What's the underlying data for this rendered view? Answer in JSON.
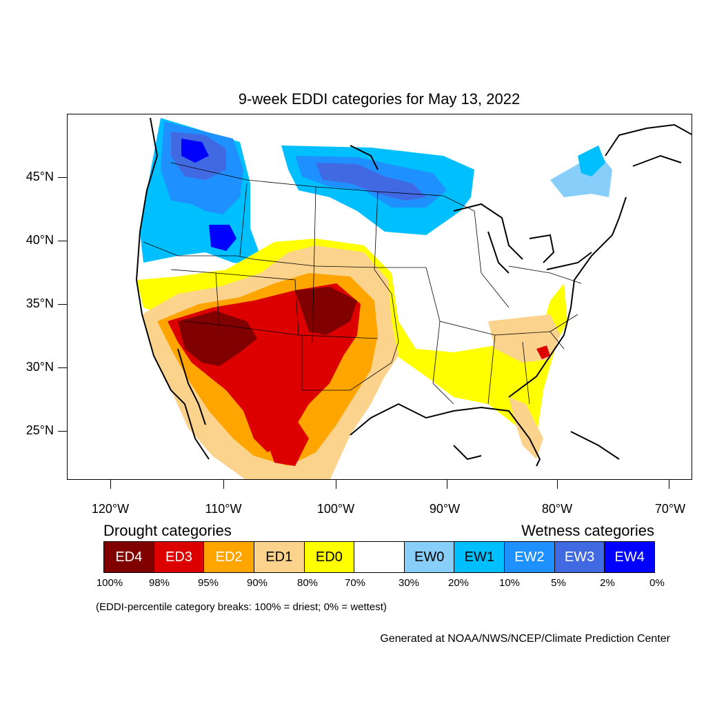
{
  "title": "9-week EDDI categories for May 13, 2022",
  "axes": {
    "lat_ticks": [
      "45°N",
      "40°N",
      "35°N",
      "30°N",
      "25°N"
    ],
    "lon_ticks": [
      "120°W",
      "110°W",
      "100°W",
      "90°W",
      "80°W",
      "70°W"
    ]
  },
  "legend": {
    "drought_heading": "Drought categories",
    "wetness_heading": "Wetness categories",
    "categories": [
      {
        "label": "ED4",
        "color": "#800000",
        "text_color": "#ffffff"
      },
      {
        "label": "ED3",
        "color": "#dd0000",
        "text_color": "#ffffff"
      },
      {
        "label": "ED2",
        "color": "#ffa500",
        "text_color": "#ffffff"
      },
      {
        "label": "ED1",
        "color": "#fcd38d",
        "text_color": "#000000"
      },
      {
        "label": "ED0",
        "color": "#ffff00",
        "text_color": "#000000"
      },
      {
        "label": "",
        "color": "#ffffff",
        "text_color": "#000000"
      },
      {
        "label": "EW0",
        "color": "#87cefa",
        "text_color": "#000000"
      },
      {
        "label": "EW1",
        "color": "#00bfff",
        "text_color": "#000000"
      },
      {
        "label": "EW2",
        "color": "#1e90ff",
        "text_color": "#ffffff"
      },
      {
        "label": "EW3",
        "color": "#4169e1",
        "text_color": "#ffffff"
      },
      {
        "label": "EW4",
        "color": "#0000ff",
        "text_color": "#ffffff"
      }
    ],
    "percentiles": [
      "100%",
      "98%",
      "95%",
      "90%",
      "80%",
      "70%",
      "30%",
      "20%",
      "10%",
      "5%",
      "2%",
      "0%"
    ]
  },
  "note": "(EDDI-percentile category breaks: 100% = driest; 0% = wettest)",
  "credit": "Generated at NOAA/NWS/NCEP/Climate Prediction Center"
}
